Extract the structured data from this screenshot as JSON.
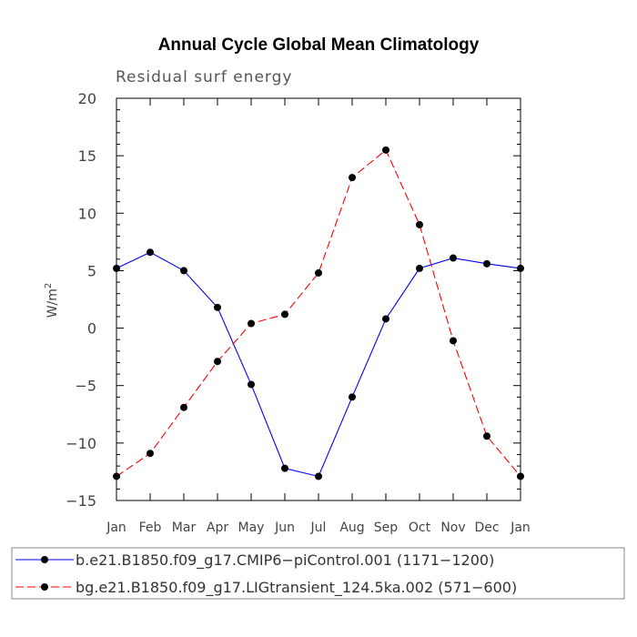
{
  "chart_data": {
    "type": "line",
    "title": "Annual Cycle Global Mean Climatology",
    "subtitle": "Residual surf energy",
    "xlabel": "",
    "ylabel": "W/m",
    "ylabel_superscript": "2",
    "categories": [
      "Jan",
      "Feb",
      "Mar",
      "Apr",
      "May",
      "Jun",
      "Jul",
      "Aug",
      "Sep",
      "Oct",
      "Nov",
      "Dec",
      "Jan"
    ],
    "ylim": [
      -15,
      20
    ],
    "yticks": [
      -15,
      -10,
      -5,
      0,
      5,
      10,
      15,
      20
    ],
    "ytick_labels": [
      "−15",
      "−10",
      "−5",
      "0",
      "5",
      "10",
      "15",
      "20"
    ],
    "series": [
      {
        "name": "b.e21.B1850.f09_g17.CMIP6−piControl.001 (1171−1200)",
        "color": "#0000ff",
        "dash": "solid",
        "values": [
          5.2,
          6.6,
          5.0,
          1.8,
          -4.9,
          -12.2,
          -12.9,
          -6.0,
          0.8,
          5.2,
          6.1,
          5.6,
          5.2
        ]
      },
      {
        "name": "bg.e21.B1850.f09_g17.LIGtransient_124.5ka.002 (571−600)",
        "color": "#ff0000",
        "dash": "dashed",
        "values": [
          -12.9,
          -10.9,
          -6.9,
          -2.9,
          0.4,
          1.2,
          4.8,
          13.1,
          15.5,
          9.0,
          -1.1,
          -9.4,
          -12.9
        ]
      }
    ]
  }
}
